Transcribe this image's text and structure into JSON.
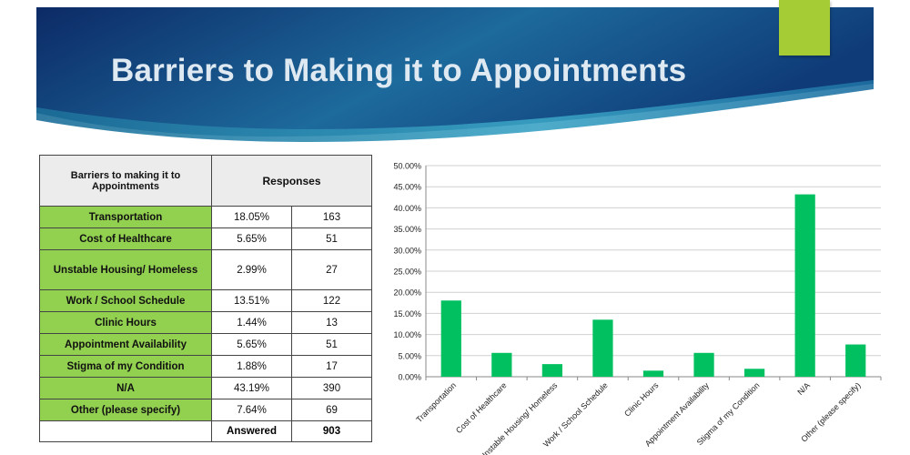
{
  "slide": {
    "title": "Barriers to Making it to Appointments",
    "colors": {
      "banner_dark": "#0c2a66",
      "banner_light": "#2a8fb5",
      "accent": "#a5cc35",
      "label_fill": "#92d050",
      "bar": "#00c060"
    }
  },
  "table": {
    "header_barrier": "Barriers to making it to Appointments",
    "header_responses": "Responses",
    "rows": [
      {
        "label": "Transportation",
        "pct": "18.05%",
        "count": "163"
      },
      {
        "label": "Cost of Healthcare",
        "pct": "5.65%",
        "count": "51"
      },
      {
        "label": "Unstable Housing/ Homeless",
        "pct": "2.99%",
        "count": "27"
      },
      {
        "label": "Work / School Schedule",
        "pct": "13.51%",
        "count": "122"
      },
      {
        "label": "Clinic Hours",
        "pct": "1.44%",
        "count": "13"
      },
      {
        "label": "Appointment Availability",
        "pct": "5.65%",
        "count": "51"
      },
      {
        "label": "Stigma of my Condition",
        "pct": "1.88%",
        "count": "17"
      },
      {
        "label": "N/A",
        "pct": "43.19%",
        "count": "390"
      },
      {
        "label": "Other (please specify)",
        "pct": "7.64%",
        "count": "69"
      }
    ],
    "answered_label": "Answered",
    "answered_count": "903"
  },
  "chart_data": {
    "type": "bar",
    "categories": [
      "Transportation",
      "Cost of Healthcare",
      "Unstable Housing/ Homeless",
      "Work / School Schedule",
      "Clinic Hours",
      "Appointment Availability",
      "Stigma of my Condition",
      "N/A",
      "Other (please specify)"
    ],
    "values": [
      18.05,
      5.65,
      2.99,
      13.51,
      1.44,
      5.65,
      1.88,
      43.19,
      7.64
    ],
    "ylim": [
      0,
      50
    ],
    "yticks": [
      "0.00%",
      "5.00%",
      "10.00%",
      "15.00%",
      "20.00%",
      "25.00%",
      "30.00%",
      "35.00%",
      "40.00%",
      "45.00%",
      "50.00%"
    ],
    "grid": true,
    "bar_color": "#00c060",
    "title": "",
    "xlabel": "",
    "ylabel": ""
  }
}
